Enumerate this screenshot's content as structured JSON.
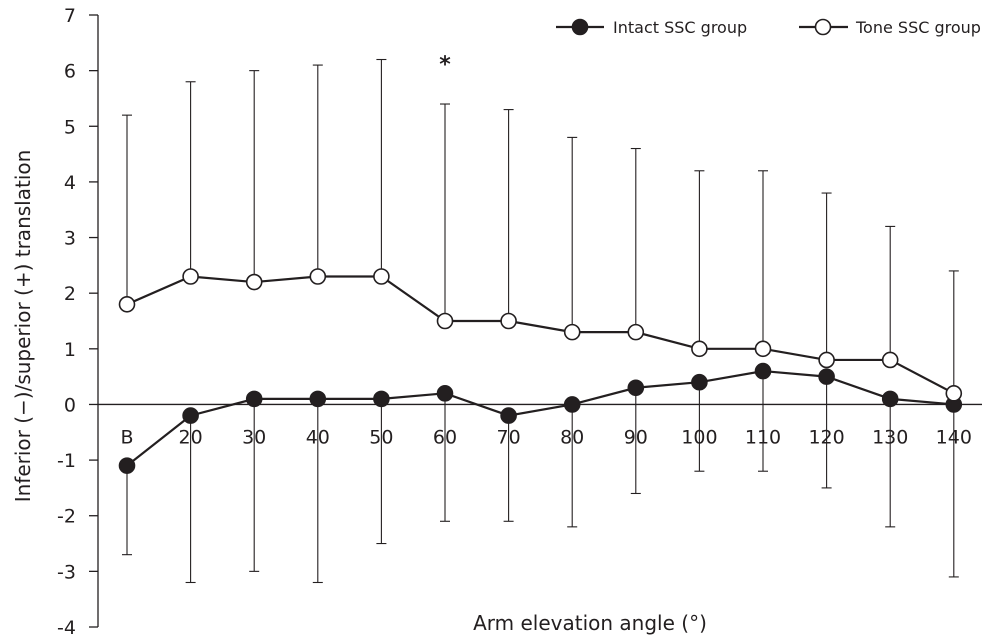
{
  "chart_data": {
    "type": "line",
    "title": "",
    "xlabel": "Arm elevation angle (°)",
    "ylabel": "Inferior (−)/superior (+) translation",
    "ylim": [
      -4,
      7
    ],
    "yticks": [
      "-4",
      "-3",
      "-2",
      "-1",
      "0",
      "1",
      "2",
      "3",
      "4",
      "5",
      "6",
      "7"
    ],
    "categories": [
      "B",
      "20",
      "30",
      "40",
      "50",
      "60",
      "70",
      "80",
      "90",
      "100",
      "110",
      "120",
      "130",
      "140"
    ],
    "legend_position": "top-right",
    "grid": false,
    "series": [
      {
        "name": "Intact SSC group",
        "marker": "filled-circle",
        "color": "#231f20",
        "values": [
          -1.1,
          -0.2,
          0.1,
          0.1,
          0.1,
          0.2,
          -0.2,
          0.0,
          0.3,
          0.4,
          0.6,
          0.5,
          0.1,
          0.0
        ],
        "error_low": [
          -2.7,
          -3.2,
          -3.0,
          -3.2,
          -2.5,
          -2.1,
          -2.1,
          -2.2,
          -1.6,
          -1.2,
          -1.2,
          -1.5,
          -2.2,
          -3.1
        ]
      },
      {
        "name": "Tone SSC group",
        "marker": "open-circle",
        "color": "#231f20",
        "values": [
          1.8,
          2.3,
          2.2,
          2.3,
          2.3,
          1.5,
          1.5,
          1.3,
          1.3,
          1.0,
          1.0,
          0.8,
          0.8,
          0.2
        ],
        "error_high": [
          5.2,
          5.8,
          6.0,
          6.1,
          6.2,
          5.4,
          5.3,
          4.8,
          4.6,
          4.2,
          4.2,
          3.8,
          3.2,
          2.4
        ]
      }
    ],
    "annotations": [
      {
        "text": "*",
        "category": "60",
        "y": 6.2
      }
    ]
  }
}
